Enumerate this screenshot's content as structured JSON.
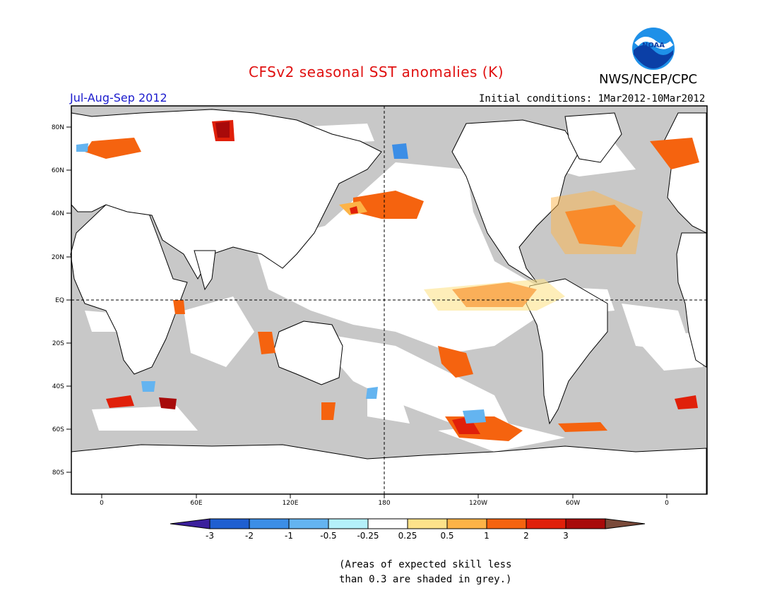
{
  "title": "CFSv2 seasonal SST anomalies (K)",
  "agency": "NWS/NCEP/CPC",
  "logo_text": "NOAA",
  "season_label": "Jul-Aug-Sep 2012",
  "initial_conditions": "Initial conditions: 1Mar2012-10Mar2012",
  "lat_ticks": [
    "80N",
    "60N",
    "40N",
    "20N",
    "EQ",
    "20S",
    "40S",
    "60S",
    "80S"
  ],
  "lon_ticks": [
    "0",
    "60E",
    "120E",
    "180",
    "120W",
    "60W",
    "0"
  ],
  "colorbar": {
    "labels": [
      "-3",
      "-2",
      "-1",
      "-0.5",
      "-0.25",
      "0.25",
      "0.5",
      "1",
      "2",
      "3"
    ],
    "colors": [
      "#3b1f9c",
      "#1f5fd0",
      "#3c8ee6",
      "#64b4f0",
      "#b4f0fa",
      "#ffffff",
      "#fde28a",
      "#fdb347",
      "#f5630f",
      "#e0200a",
      "#a80a0a",
      "#7a4a3a"
    ]
  },
  "colors": {
    "land": "#ffffff",
    "skill_mask_grey": "#c8c8c8",
    "ocean_neutral": "#ffffff",
    "title_red": "#e01010",
    "season_blue": "#1a1acd"
  },
  "footnote": {
    "line1": "(Areas of expected skill less",
    "line2": "than 0.3 are shaded in grey.)"
  }
}
